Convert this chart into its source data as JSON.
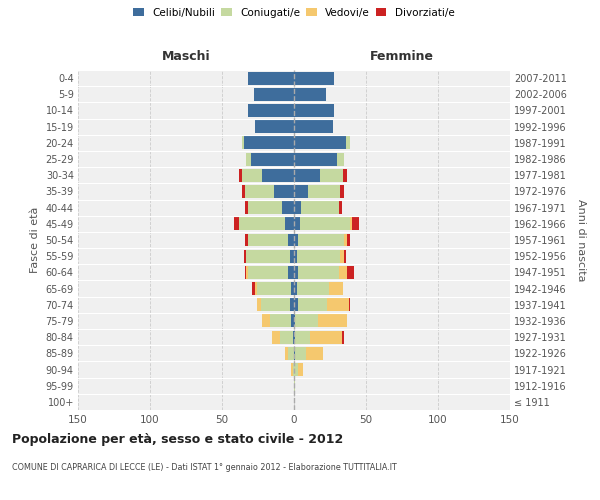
{
  "age_groups": [
    "100+",
    "95-99",
    "90-94",
    "85-89",
    "80-84",
    "75-79",
    "70-74",
    "65-69",
    "60-64",
    "55-59",
    "50-54",
    "45-49",
    "40-44",
    "35-39",
    "30-34",
    "25-29",
    "20-24",
    "15-19",
    "10-14",
    "5-9",
    "0-4"
  ],
  "birth_years": [
    "≤ 1911",
    "1912-1916",
    "1917-1921",
    "1922-1926",
    "1927-1931",
    "1932-1936",
    "1937-1941",
    "1942-1946",
    "1947-1951",
    "1952-1956",
    "1957-1961",
    "1962-1966",
    "1967-1971",
    "1972-1976",
    "1977-1981",
    "1982-1986",
    "1987-1991",
    "1992-1996",
    "1997-2001",
    "2002-2006",
    "2007-2011"
  ],
  "colors": {
    "celibi": "#3e6d9c",
    "coniugati": "#c5d9a0",
    "vedovi": "#f5c86e",
    "divorziati": "#cc2222"
  },
  "males": {
    "celibi": [
      0,
      0,
      0,
      0,
      1,
      2,
      3,
      2,
      4,
      3,
      4,
      6,
      8,
      14,
      22,
      30,
      35,
      27,
      32,
      28,
      32
    ],
    "coniugati": [
      0,
      0,
      1,
      4,
      9,
      15,
      20,
      24,
      28,
      30,
      28,
      32,
      24,
      20,
      14,
      3,
      1,
      0,
      0,
      0,
      0
    ],
    "vedovi": [
      0,
      0,
      1,
      2,
      5,
      5,
      3,
      1,
      1,
      0,
      0,
      0,
      0,
      0,
      0,
      0,
      0,
      0,
      0,
      0,
      0
    ],
    "divorziati": [
      0,
      0,
      0,
      0,
      0,
      0,
      0,
      2,
      1,
      2,
      2,
      4,
      2,
      2,
      2,
      0,
      0,
      0,
      0,
      0,
      0
    ]
  },
  "females": {
    "nubili": [
      0,
      0,
      0,
      1,
      1,
      1,
      3,
      2,
      3,
      2,
      3,
      4,
      5,
      10,
      18,
      30,
      36,
      27,
      28,
      22,
      28
    ],
    "coniugate": [
      0,
      1,
      3,
      7,
      10,
      16,
      20,
      22,
      28,
      30,
      32,
      35,
      26,
      22,
      16,
      5,
      3,
      0,
      0,
      0,
      0
    ],
    "vedove": [
      0,
      0,
      3,
      12,
      22,
      20,
      15,
      10,
      6,
      3,
      2,
      1,
      0,
      0,
      0,
      0,
      0,
      0,
      0,
      0,
      0
    ],
    "divorziate": [
      0,
      0,
      0,
      0,
      2,
      0,
      1,
      0,
      5,
      1,
      2,
      5,
      2,
      3,
      3,
      0,
      0,
      0,
      0,
      0,
      0
    ]
  },
  "title": "Popolazione per età, sesso e stato civile - 2012",
  "subtitle": "COMUNE DI CAPRARICA DI LECCE (LE) - Dati ISTAT 1° gennaio 2012 - Elaborazione TUTTITALIA.IT",
  "xlabel_left": "Maschi",
  "xlabel_right": "Femmine",
  "ylabel_left": "Fasce di età",
  "ylabel_right": "Anni di nascita",
  "xlim": 150,
  "bg_color": "#f0f0f0",
  "grid_color": "#cccccc"
}
